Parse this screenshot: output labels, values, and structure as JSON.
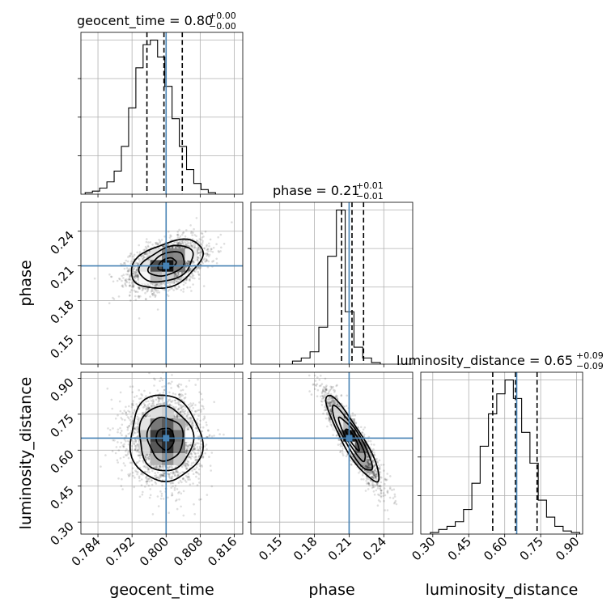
{
  "colors": {
    "truth": "#4682b4",
    "samples": "#000000",
    "grid": "#b0b0b0"
  },
  "chart_data": {
    "type": "corner",
    "truths": {
      "geocent_time": 0.8,
      "phase": 0.21,
      "luminosity_distance": 0.65
    },
    "parameters": [
      {
        "name": "geocent_time",
        "label": "geocent_time",
        "range": [
          0.78,
          0.818
        ],
        "ticks": [
          0.784,
          0.792,
          0.8,
          0.808,
          0.816
        ],
        "tick_labels": [
          "0.784",
          "0.792",
          "0.800",
          "0.808",
          "0.816"
        ],
        "title": {
          "text": "geocent_time = 0.80",
          "plus": "+0.00",
          "minus": "−0.00"
        },
        "quantiles": [
          0.7955,
          0.7995,
          0.8038
        ],
        "hist": {
          "x0": 0.781,
          "bin_width": 0.0017,
          "counts": [
            1,
            2,
            4,
            8,
            15,
            31,
            56,
            82,
            97,
            100,
            89,
            70,
            49,
            31,
            16,
            7,
            3,
            1
          ]
        }
      },
      {
        "name": "phase",
        "label": "phase",
        "range": [
          0.125,
          0.265
        ],
        "ticks": [
          0.15,
          0.18,
          0.21,
          0.24
        ],
        "tick_labels": [
          "0.15",
          "0.18",
          "0.21",
          "0.24"
        ],
        "title": {
          "text": "phase = 0.21",
          "plus": "+0.01",
          "minus": "−0.01"
        },
        "quantiles": [
          0.2035,
          0.2125,
          0.2225
        ],
        "hist": {
          "x0": 0.161,
          "bin_width": 0.0076,
          "counts": [
            2,
            4,
            8,
            24,
            70,
            100,
            34,
            11,
            4,
            1
          ]
        }
      },
      {
        "name": "luminosity_distance",
        "label": "luminosity_distance",
        "range": [
          0.25,
          0.925
        ],
        "ticks": [
          0.3,
          0.45,
          0.6,
          0.75,
          0.9
        ],
        "tick_labels": [
          "0.30",
          "0.45",
          "0.60",
          "0.75",
          "0.90"
        ],
        "title": {
          "text": "luminosity_distance = 0.65",
          "plus": "+0.09",
          "minus": "−0.09"
        },
        "quantiles": [
          0.55,
          0.645,
          0.735
        ],
        "hist": {
          "x0": 0.29,
          "bin_width": 0.0346,
          "counts": [
            1,
            3,
            5,
            8,
            16,
            33,
            57,
            78,
            91,
            100,
            88,
            66,
            46,
            22,
            11,
            5,
            2,
            1
          ]
        }
      }
    ],
    "pairs": [
      {
        "x": "geocent_time",
        "y": "phase",
        "center": [
          0.8002,
          0.2115
        ],
        "sigma": [
          0.0042,
          0.0105
        ],
        "rho": 0.4,
        "n": 2600
      },
      {
        "x": "geocent_time",
        "y": "luminosity_distance",
        "center": [
          0.7998,
          0.648
        ],
        "sigma": [
          0.0042,
          0.09
        ],
        "rho": -0.05,
        "n": 2600
      },
      {
        "x": "phase",
        "y": "luminosity_distance",
        "center": [
          0.213,
          0.645
        ],
        "sigma": [
          0.0115,
          0.09
        ],
        "rho": -0.9,
        "n": 2600
      }
    ],
    "contour_levels_sigma": [
      0.5,
      1.0,
      1.5,
      2.0
    ]
  }
}
